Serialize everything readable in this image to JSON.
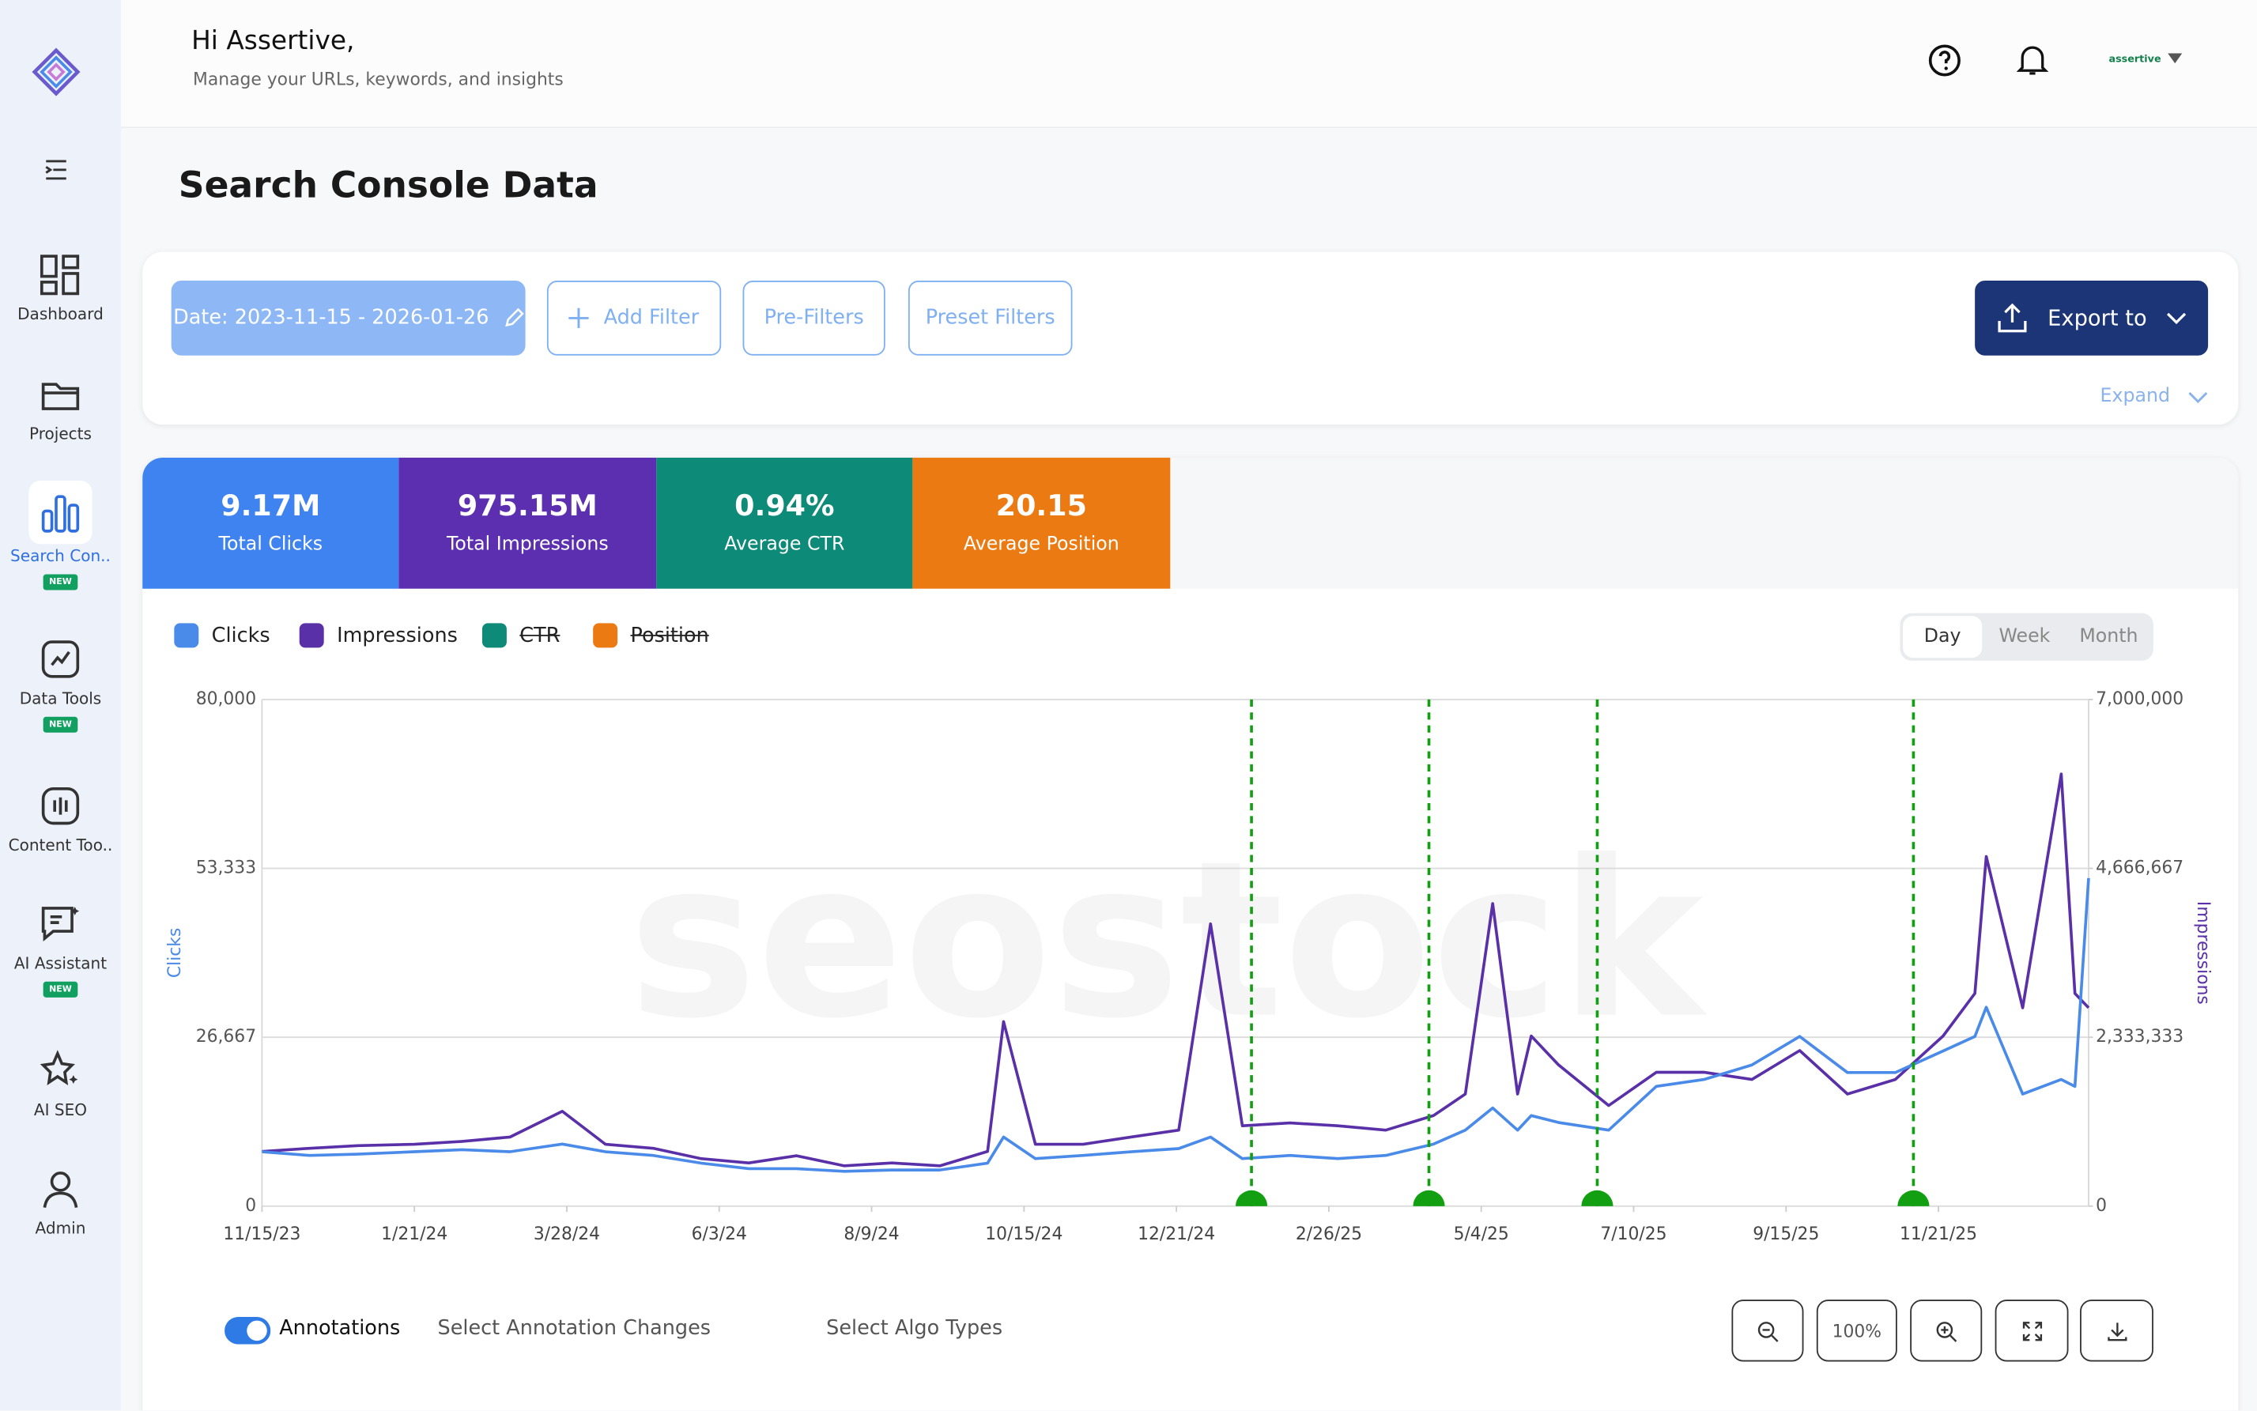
{
  "header": {
    "greeting": "Hi Assertive,",
    "subtitle": "Manage your URLs, keywords, and insights",
    "user": "assertive"
  },
  "sidebar": {
    "items": [
      {
        "label": "Dashboard"
      },
      {
        "label": "Projects"
      },
      {
        "label": "Search Con..",
        "badge": "NEW"
      },
      {
        "label": "Data Tools",
        "badge": "NEW"
      },
      {
        "label": "Content Too.."
      },
      {
        "label": "AI Assistant",
        "badge": "NEW"
      },
      {
        "label": "AI SEO"
      },
      {
        "label": "Admin"
      }
    ]
  },
  "page_title": "Search Console Data",
  "filters": {
    "date": "Date: 2023-11-15 - 2026-01-26",
    "add_filter": "Add Filter",
    "pre_filters": "Pre-Filters",
    "preset_filters": "Preset Filters",
    "export": "Export to",
    "expand": "Expand"
  },
  "kpis": [
    {
      "value": "9.17M",
      "label": "Total Clicks"
    },
    {
      "value": "975.15M",
      "label": "Total Impressions"
    },
    {
      "value": "0.94%",
      "label": "Average CTR"
    },
    {
      "value": "20.15",
      "label": "Average Position"
    }
  ],
  "granularity": {
    "options": [
      "Day",
      "Week",
      "Month"
    ],
    "selected": "Day"
  },
  "chart_data": {
    "type": "line",
    "watermark": "seostock",
    "ylabel": "Clicks",
    "y2label": "Impressions",
    "x": [
      "11/15/23",
      "12/6/23",
      "12/27/23",
      "1/21/24",
      "2/11/24",
      "3/3/24",
      "3/26/24",
      "4/14/24",
      "5/5/24",
      "5/26/24",
      "6/16/24",
      "7/7/24",
      "7/28/24",
      "8/18/24",
      "9/8/24",
      "9/29/24",
      "10/6/24",
      "10/20/24",
      "11/10/24",
      "12/1/24",
      "12/22/24",
      "1/5/25",
      "1/19/25",
      "2/9/25",
      "3/2/25",
      "3/23/25",
      "4/13/25",
      "4/27/25",
      "5/9/25",
      "5/20/25",
      "5/26/25",
      "6/7/25",
      "6/29/25",
      "7/20/25",
      "8/10/25",
      "8/31/25",
      "9/21/25",
      "10/12/25",
      "11/2/25",
      "11/23/25",
      "12/7/25",
      "12/12/25",
      "12/28/25",
      "1/14/26",
      "1/20/26",
      "1/26/26"
    ],
    "series": [
      {
        "name": "Clicks",
        "color": "#4a8ae8",
        "values": [
          8600,
          8000,
          8200,
          8600,
          8900,
          8600,
          9800,
          8600,
          8000,
          6800,
          5900,
          5900,
          5500,
          5700,
          5700,
          6800,
          10900,
          7500,
          8000,
          8600,
          9100,
          10900,
          7500,
          8000,
          7500,
          8000,
          9800,
          12000,
          15500,
          12000,
          14300,
          13200,
          12000,
          18900,
          20000,
          22300,
          26800,
          21100,
          21100,
          24500,
          26800,
          31400,
          17700,
          20000,
          18900,
          51800
        ]
      },
      {
        "name": "Impressions",
        "color": "#5a30a8",
        "axis": "y2",
        "values": [
          756000,
          800000,
          835000,
          855000,
          895000,
          955000,
          1310000,
          855000,
          800000,
          656000,
          597000,
          696000,
          557000,
          597000,
          557000,
          756000,
          2550000,
          855000,
          855000,
          955000,
          1050000,
          3900000,
          1110000,
          1150000,
          1110000,
          1050000,
          1250000,
          1550000,
          4180000,
          1550000,
          2350000,
          1950000,
          1390000,
          1850000,
          1850000,
          1750000,
          2150000,
          1550000,
          1750000,
          2350000,
          2940000,
          4830000,
          2740000,
          5970000,
          2940000,
          2740000
        ]
      }
    ],
    "hidden_series": [
      {
        "name": "CTR",
        "color": "#0e8a79"
      },
      {
        "name": "Position",
        "color": "#ec7a12"
      }
    ],
    "xlim": [
      "11/15/23",
      "1/26/26"
    ],
    "xticks": [
      "11/15/23",
      "1/21/24",
      "3/28/24",
      "6/3/24",
      "8/9/24",
      "10/15/24",
      "12/21/24",
      "2/26/25",
      "5/4/25",
      "7/10/25",
      "9/15/25",
      "11/21/25"
    ],
    "ylim": [
      0,
      80000
    ],
    "yticks": [
      0,
      {
        "value": 26667,
        "label": "26,667"
      },
      {
        "value": 53333,
        "label": "53,333"
      },
      {
        "value": 80000,
        "label": "80,000"
      }
    ],
    "y2lim": [
      0,
      7000000
    ],
    "y2ticks": [
      0,
      {
        "value": 2333333,
        "label": "2,333,333"
      },
      {
        "value": 4666667,
        "label": "4,666,667"
      },
      {
        "value": 7000000,
        "label": "7,000,000"
      }
    ],
    "grid": true,
    "annotations": [
      "1/23/25",
      "4/11/25",
      "6/24/25",
      "11/10/25"
    ],
    "annotation_color": "#12a012"
  },
  "controls": {
    "annotations": "Annotations",
    "select_annotation_changes": "Select Annotation Changes",
    "select_algo_types": "Select Algo Types",
    "zoom": "100%"
  }
}
